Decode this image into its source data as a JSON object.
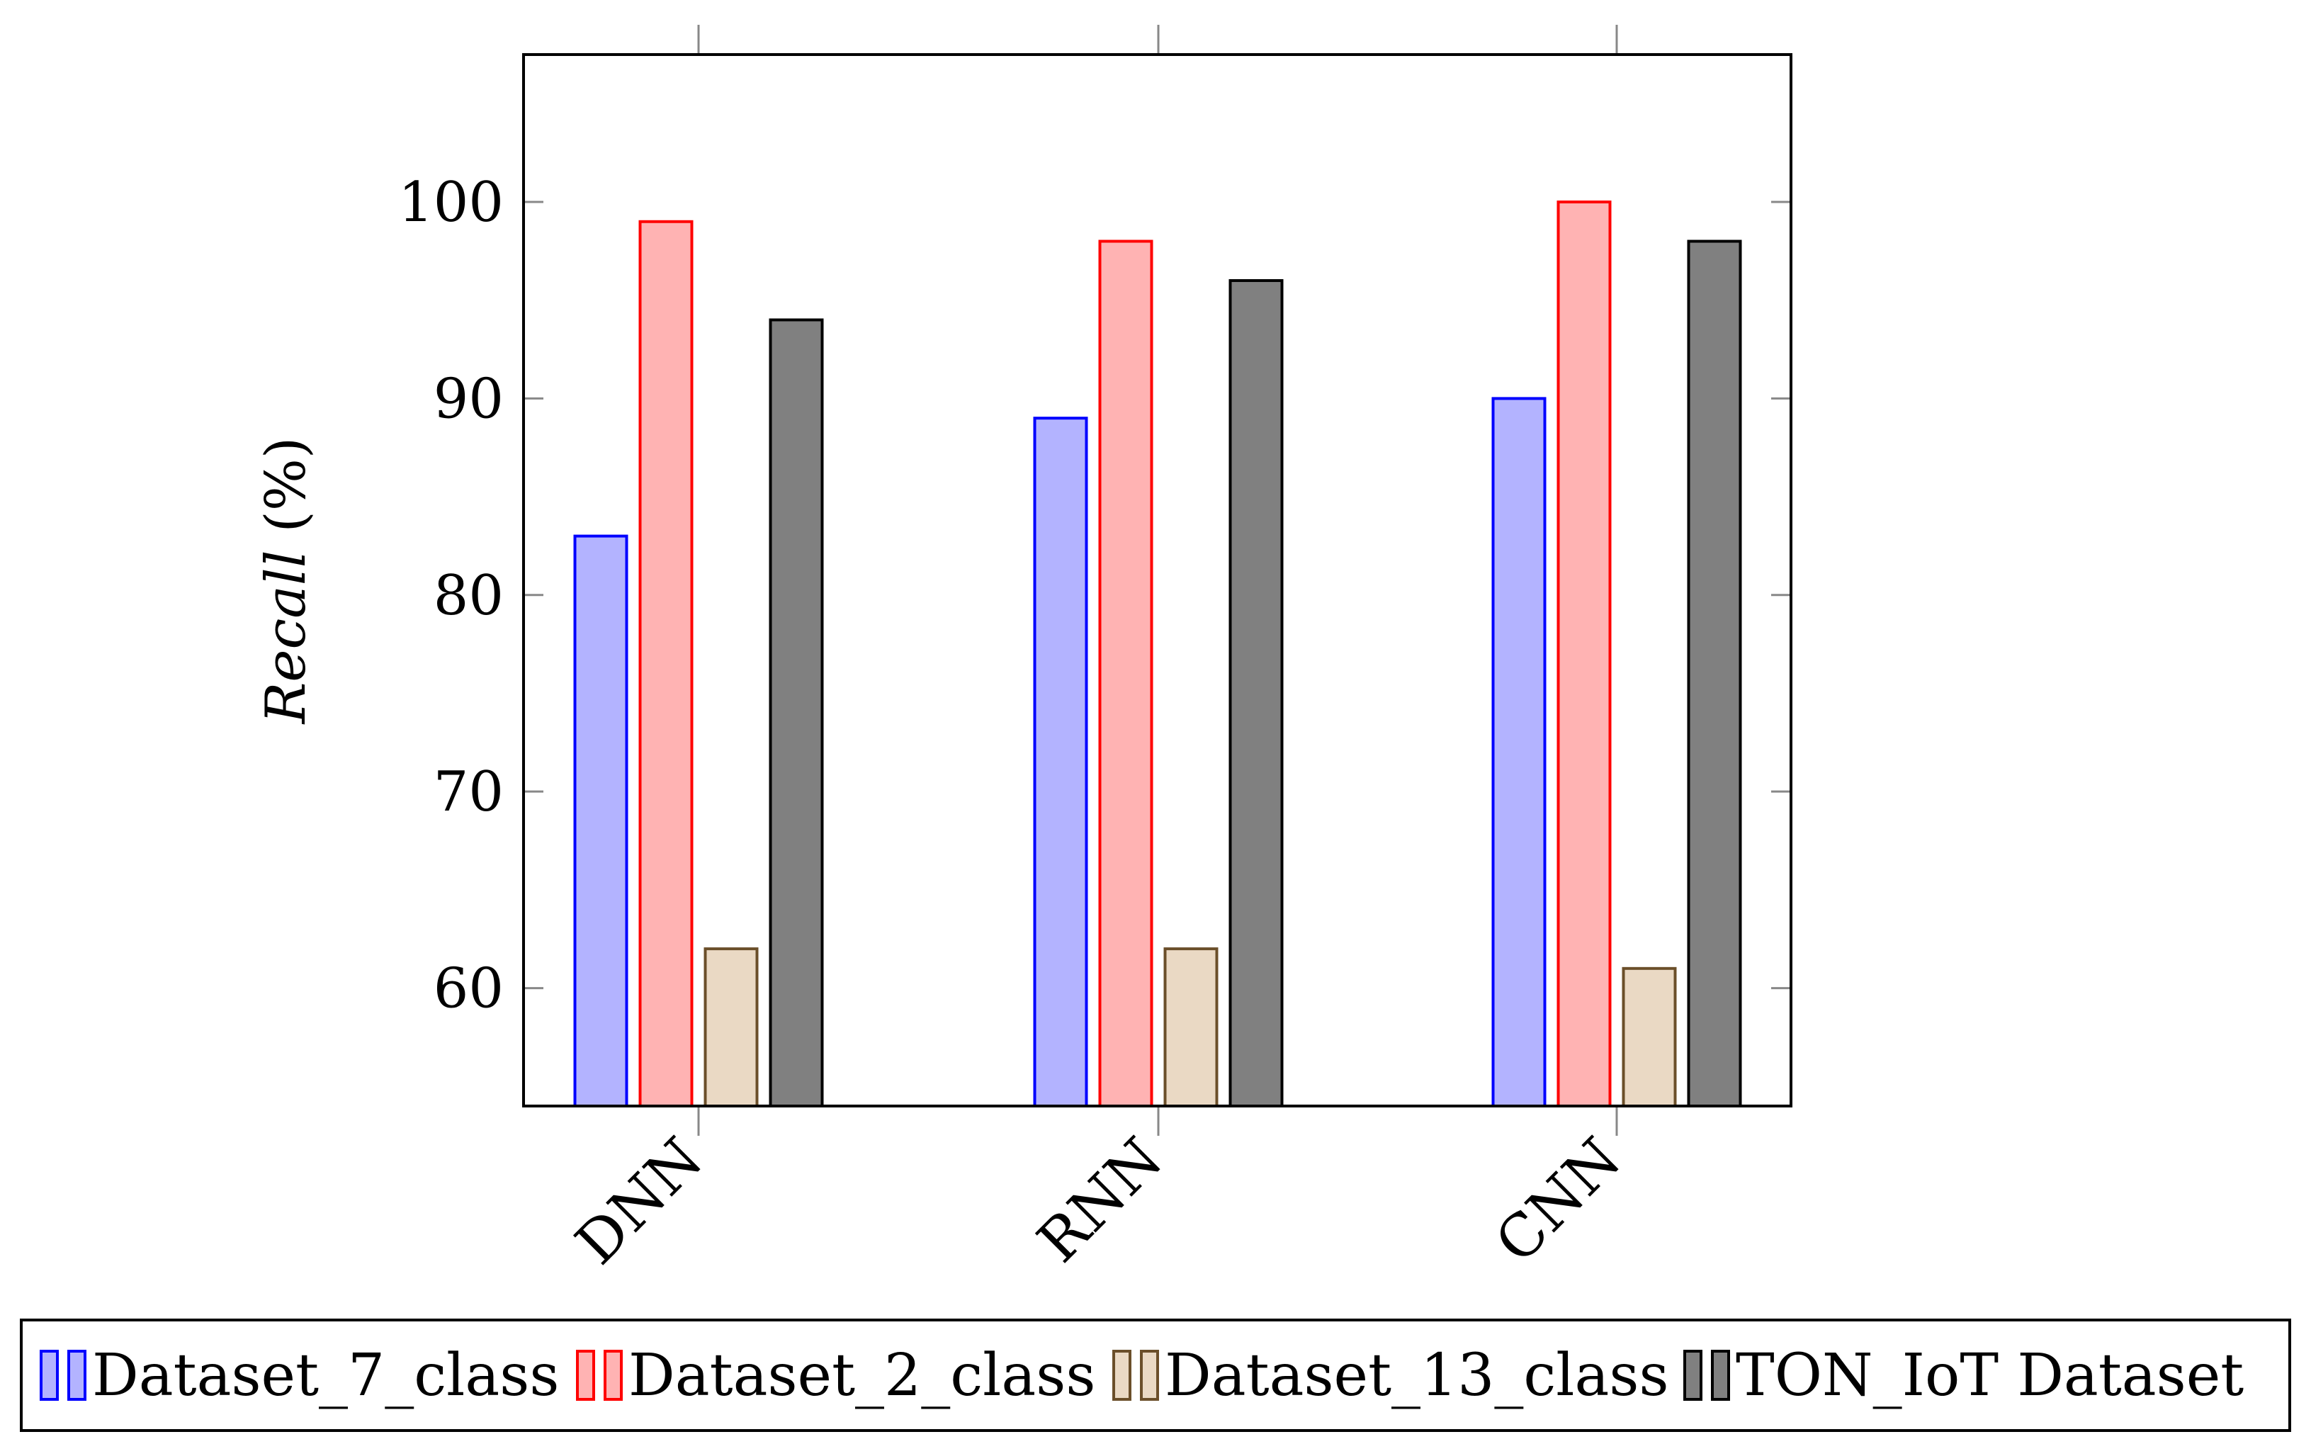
{
  "chart_data": {
    "type": "bar",
    "title": "",
    "xlabel": "",
    "ylabel": "Recall",
    "ylabel_suffix": " (%)",
    "ylim": [
      54,
      107.5
    ],
    "yticks": [
      60,
      70,
      80,
      90,
      100
    ],
    "categories": [
      "DNN",
      "RNN",
      "CNN"
    ],
    "series": [
      {
        "name": "Dataset_7_class",
        "values": [
          83,
          89,
          90
        ],
        "fill": "#b3b3ff",
        "stroke": "#0000ff"
      },
      {
        "name": "Dataset_2_class",
        "values": [
          99,
          98,
          100
        ],
        "fill": "#ffb3b3",
        "stroke": "#ff0000"
      },
      {
        "name": "Dataset_13_class",
        "values": [
          62,
          62,
          61
        ],
        "fill": "#ead9c4",
        "stroke": "#6b4f2a"
      },
      {
        "name": "TON_IoT Dataset",
        "values": [
          94,
          96,
          98
        ],
        "fill": "#808080",
        "stroke": "#000000"
      }
    ],
    "grid": false,
    "legend_position": "bottom"
  }
}
